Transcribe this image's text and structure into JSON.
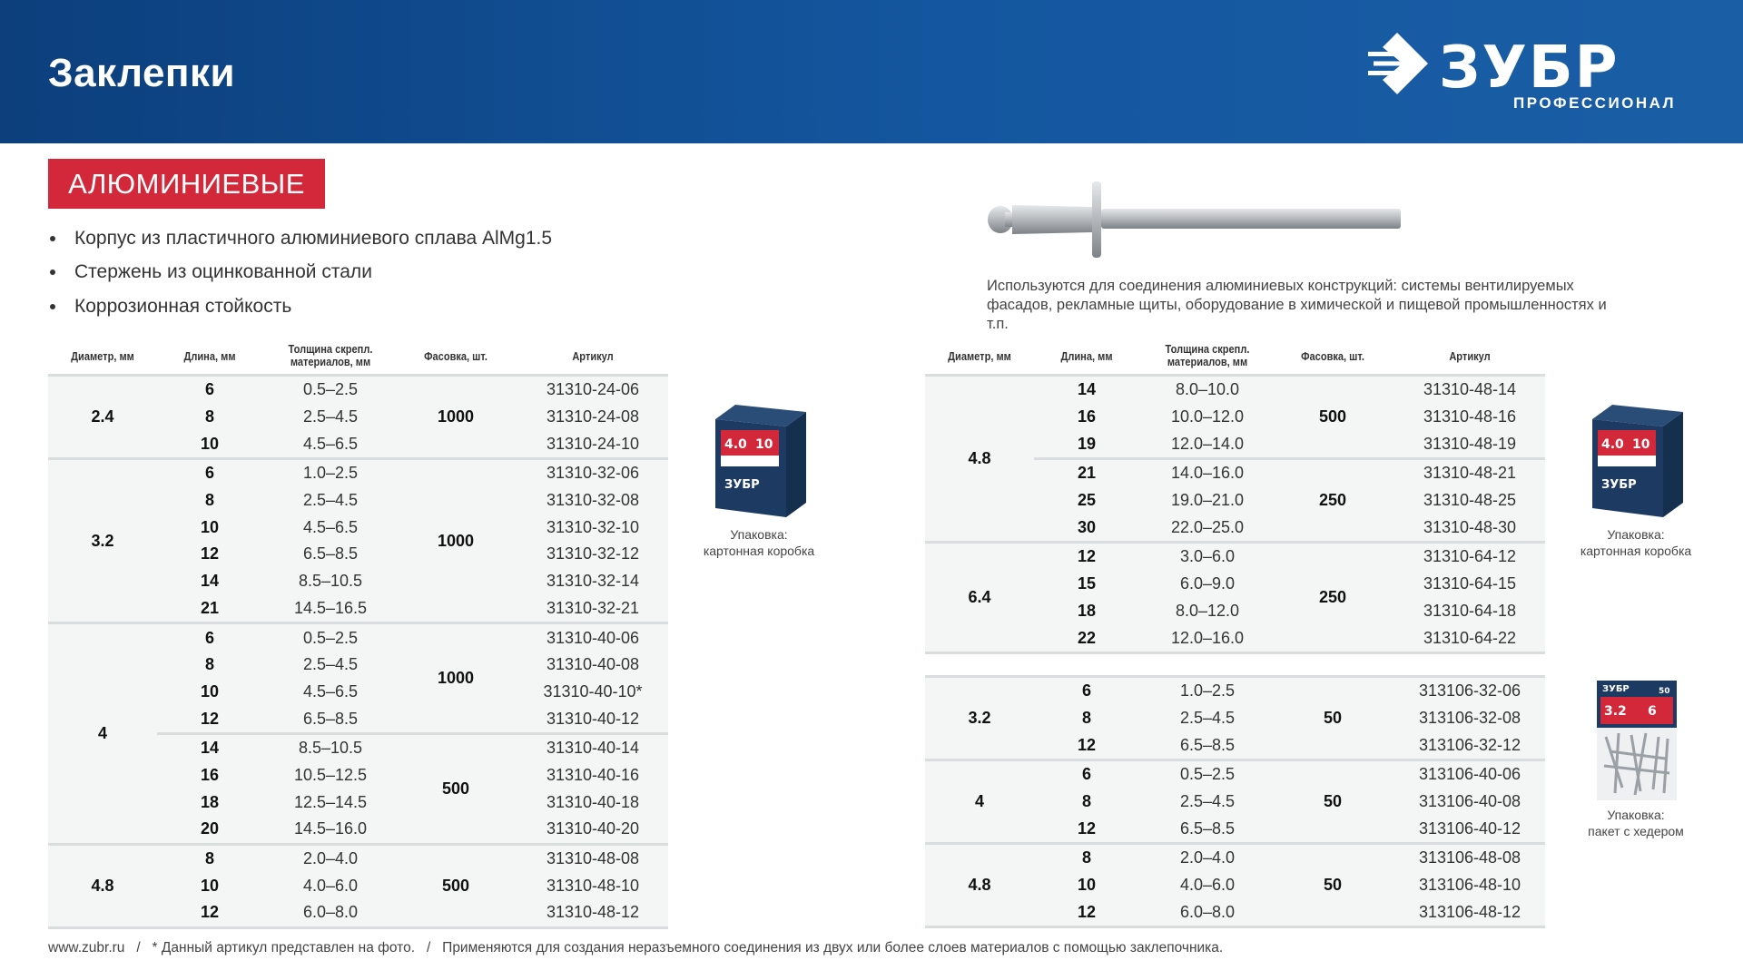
{
  "header": {
    "title": "Заклепки",
    "logo_text": "ЗУБР",
    "logo_subtitle": "ПРОФЕССИОНАЛ"
  },
  "colors": {
    "header_blue": "#1457a0",
    "badge_red": "#d3283a",
    "row_bg": "#f4f5f5"
  },
  "category_badge": "АЛЮМИНИЕВЫЕ",
  "features": [
    "Корпус из пластичного алюминиевого сплава AlMg1.5",
    "Стержень из оцинкованной стали",
    "Коррозионная стойкость"
  ],
  "description": "Используются для соединения алюминиевых конструкций: системы вентилируемых фасадов, рекламные щиты, оборудование в химической и пищевой промышленностях и т.п.",
  "columns": [
    "Диаметр, мм",
    "Длина, мм",
    "Толщина скрепл. материалов, мм",
    "Фасовка, шт.",
    "Артикул"
  ],
  "left_table": [
    {
      "diameter": "2.4",
      "subs": [
        {
          "pack": "1000",
          "rows": [
            [
              "6",
              "0.5–2.5",
              "31310-24-06"
            ],
            [
              "8",
              "2.5–4.5",
              "31310-24-08"
            ],
            [
              "10",
              "4.5–6.5",
              "31310-24-10"
            ]
          ]
        }
      ]
    },
    {
      "diameter": "3.2",
      "subs": [
        {
          "pack": "1000",
          "rows": [
            [
              "6",
              "1.0–2.5",
              "31310-32-06"
            ],
            [
              "8",
              "2.5–4.5",
              "31310-32-08"
            ],
            [
              "10",
              "4.5–6.5",
              "31310-32-10"
            ],
            [
              "12",
              "6.5–8.5",
              "31310-32-12"
            ],
            [
              "14",
              "8.5–10.5",
              "31310-32-14"
            ],
            [
              "21",
              "14.5–16.5",
              "31310-32-21"
            ]
          ]
        }
      ]
    },
    {
      "diameter": "4",
      "subs": [
        {
          "pack": "1000",
          "rows": [
            [
              "6",
              "0.5–2.5",
              "31310-40-06"
            ],
            [
              "8",
              "2.5–4.5",
              "31310-40-08"
            ],
            [
              "10",
              "4.5–6.5",
              "31310-40-10*"
            ],
            [
              "12",
              "6.5–8.5",
              "31310-40-12"
            ]
          ]
        },
        {
          "pack": "500",
          "rows": [
            [
              "14",
              "8.5–10.5",
              "31310-40-14"
            ],
            [
              "16",
              "10.5–12.5",
              "31310-40-16"
            ],
            [
              "18",
              "12.5–14.5",
              "31310-40-18"
            ],
            [
              "20",
              "14.5–16.0",
              "31310-40-20"
            ]
          ]
        }
      ]
    },
    {
      "diameter": "4.8",
      "subs": [
        {
          "pack": "500",
          "rows": [
            [
              "8",
              "2.0–4.0",
              "31310-48-08"
            ],
            [
              "10",
              "4.0–6.0",
              "31310-48-10"
            ],
            [
              "12",
              "6.0–8.0",
              "31310-48-12"
            ]
          ]
        }
      ]
    }
  ],
  "right_table_top": [
    {
      "diameter": "4.8",
      "subs": [
        {
          "pack": "500",
          "rows": [
            [
              "14",
              "8.0–10.0",
              "31310-48-14"
            ],
            [
              "16",
              "10.0–12.0",
              "31310-48-16"
            ],
            [
              "19",
              "12.0–14.0",
              "31310-48-19"
            ]
          ]
        },
        {
          "pack": "250",
          "rows": [
            [
              "21",
              "14.0–16.0",
              "31310-48-21"
            ],
            [
              "25",
              "19.0–21.0",
              "31310-48-25"
            ],
            [
              "30",
              "22.0–25.0",
              "31310-48-30"
            ]
          ]
        }
      ]
    },
    {
      "diameter": "6.4",
      "subs": [
        {
          "pack": "250",
          "rows": [
            [
              "12",
              "3.0–6.0",
              "31310-64-12"
            ],
            [
              "15",
              "6.0–9.0",
              "31310-64-15"
            ],
            [
              "18",
              "8.0–12.0",
              "31310-64-18"
            ],
            [
              "22",
              "12.0–16.0",
              "31310-64-22"
            ]
          ]
        }
      ]
    }
  ],
  "right_table_bottom": [
    {
      "diameter": "3.2",
      "subs": [
        {
          "pack": "50",
          "rows": [
            [
              "6",
              "1.0–2.5",
              "313106-32-06"
            ],
            [
              "8",
              "2.5–4.5",
              "313106-32-08"
            ],
            [
              "12",
              "6.5–8.5",
              "313106-32-12"
            ]
          ]
        }
      ]
    },
    {
      "diameter": "4",
      "subs": [
        {
          "pack": "50",
          "rows": [
            [
              "6",
              "0.5–2.5",
              "313106-40-06"
            ],
            [
              "8",
              "2.5–4.5",
              "313106-40-08"
            ],
            [
              "12",
              "6.5–8.5",
              "313106-40-12"
            ]
          ]
        }
      ]
    },
    {
      "diameter": "4.8",
      "subs": [
        {
          "pack": "50",
          "rows": [
            [
              "8",
              "2.0–4.0",
              "313106-48-08"
            ],
            [
              "10",
              "4.0–6.0",
              "313106-48-10"
            ],
            [
              "12",
              "6.0–8.0",
              "313106-48-12"
            ]
          ]
        }
      ]
    }
  ],
  "packaging": {
    "box_label": "Упаковка:",
    "box_type": "картонная коробка",
    "bag_label": "Упаковка:",
    "bag_type": "пакет с хедером",
    "box_print": {
      "diameter": "4.0",
      "length": "10",
      "brand": "ЗУБР"
    },
    "bag_print": {
      "diameter": "3.2",
      "length": "6",
      "count": "50"
    }
  },
  "footer": "www.zubr.ru   /   * Данный артикул представлен на фото.   /   Применяются для создания неразъемного соединения из двух или более слоев материалов с помощью заклепочника."
}
